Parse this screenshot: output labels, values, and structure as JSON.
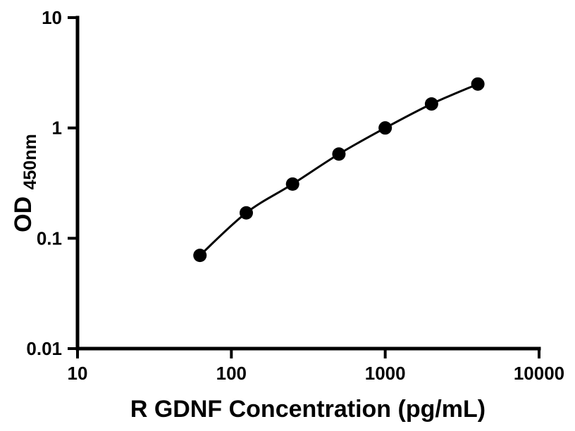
{
  "chart": {
    "xlabel": "R GDNF Concentration (pg/mL)",
    "ylabel_main": "OD",
    "ylabel_sub": "450nm"
  },
  "chart_data": {
    "type": "scatter",
    "title": "",
    "xlabel": "R GDNF Concentration (pg/mL)",
    "ylabel": "OD450nm",
    "x_scale": "log",
    "y_scale": "log",
    "xlim": [
      10,
      10000
    ],
    "ylim": [
      0.01,
      10
    ],
    "x": [
      62.5,
      125,
      250,
      500,
      1000,
      2000,
      4000
    ],
    "y": [
      0.07,
      0.17,
      0.31,
      0.58,
      1.0,
      1.65,
      2.5
    ],
    "x_ticks": [
      10,
      100,
      1000,
      10000
    ],
    "x_tick_labels": [
      "10",
      "100",
      "1000",
      "10000"
    ],
    "y_ticks": [
      0.01,
      0.1,
      1,
      10
    ],
    "y_tick_labels": [
      "0.01",
      "0.1",
      "1",
      "10"
    ],
    "grid": "off",
    "legend": "none",
    "marker_color": "#000000",
    "line_color": "#000000"
  }
}
